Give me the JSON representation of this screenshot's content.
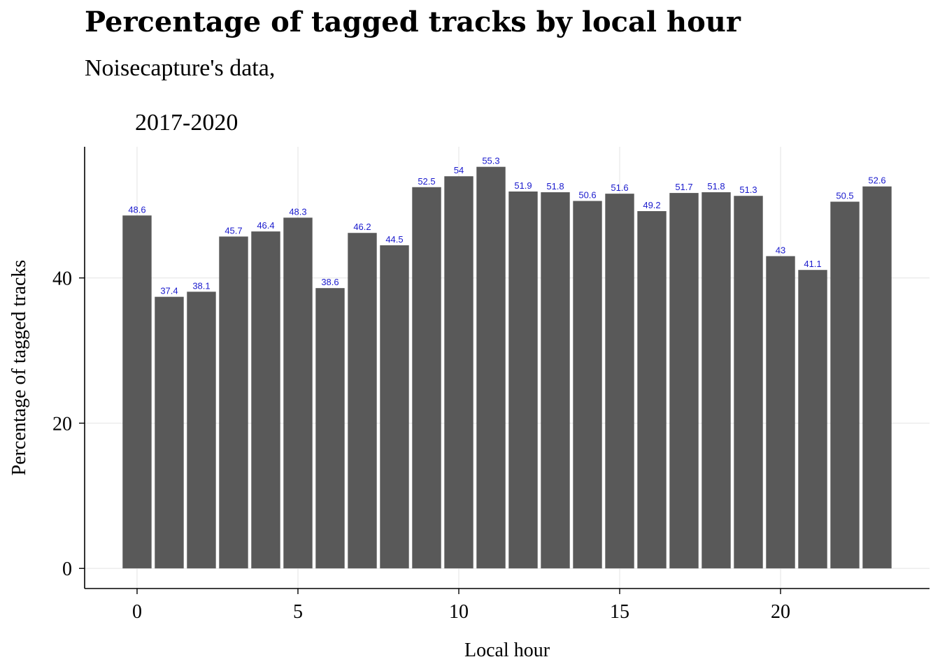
{
  "chart_data": {
    "type": "bar",
    "title": "Percentage of tagged tracks by local hour",
    "subtitle_line1": "Noisecapture's data,",
    "subtitle_line2": "2017-2020",
    "xlabel": "Local hour",
    "ylabel": "Percentage of tagged tracks",
    "x": [
      0,
      1,
      2,
      3,
      4,
      5,
      6,
      7,
      8,
      9,
      10,
      11,
      12,
      13,
      14,
      15,
      16,
      17,
      18,
      19,
      20,
      21,
      22,
      23
    ],
    "values": [
      48.6,
      37.4,
      38.1,
      45.7,
      46.4,
      48.3,
      38.6,
      46.2,
      44.5,
      52.5,
      54,
      55.3,
      51.9,
      51.8,
      50.6,
      51.6,
      49.2,
      51.7,
      51.8,
      51.3,
      43,
      41.1,
      50.5,
      52.6
    ],
    "data_labels": [
      "48.6",
      "37.4",
      "38.1",
      "45.7",
      "46.4",
      "48.3",
      "38.6",
      "46.2",
      "44.5",
      "52.5",
      "54",
      "55.3",
      "51.9",
      "51.8",
      "50.6",
      "51.6",
      "49.2",
      "51.7",
      "51.8",
      "51.3",
      "43",
      "41.1",
      "50.5",
      "52.6"
    ],
    "x_ticks": [
      0,
      5,
      10,
      15,
      20
    ],
    "x_tick_labels": [
      "0",
      "5",
      "10",
      "15",
      "20"
    ],
    "y_ticks": [
      0,
      20,
      40
    ],
    "y_tick_labels": [
      "0",
      "20",
      "40"
    ],
    "xlim": [
      -1.63,
      24.63
    ],
    "ylim": [
      -2.77,
      58.06
    ],
    "grid": true,
    "legend": "none",
    "colors": {
      "bar": "#595959",
      "label": "#1a1acd",
      "grid": "#ebebeb",
      "axis": "#000000"
    }
  }
}
